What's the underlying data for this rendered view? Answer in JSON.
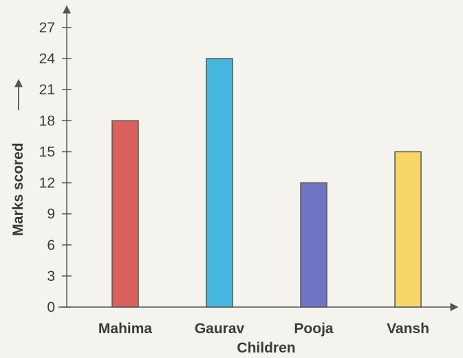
{
  "chart_data": {
    "type": "bar",
    "categories": [
      "Mahima",
      "Gaurav",
      "Pooja",
      "Vansh"
    ],
    "values": [
      18,
      24,
      12,
      15
    ],
    "title": "",
    "xlabel": "Children",
    "ylabel": "Marks scored",
    "ylim": [
      0,
      27
    ],
    "yticks": [
      0,
      3,
      6,
      9,
      12,
      15,
      18,
      21,
      24,
      27
    ],
    "grid": false,
    "legend": "none",
    "bar_colors": [
      "#d9625c",
      "#47b6dd",
      "#6f74c4",
      "#f6d667"
    ],
    "bar_edge_color": "#555555"
  }
}
